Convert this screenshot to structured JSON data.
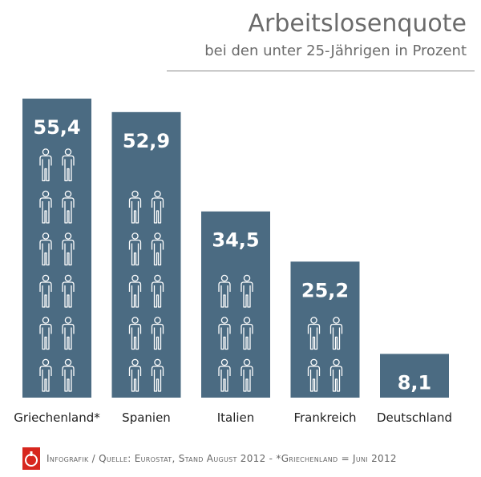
{
  "header": {
    "title": "Arbeitslosenquote",
    "subtitle": "bei den unter 25-Jährigen in Prozent"
  },
  "chart_data": {
    "type": "bar",
    "title": "Arbeitslosenquote",
    "subtitle": "bei den unter 25-Jährigen in Prozent",
    "categories": [
      "Griechenland*",
      "Spanien",
      "Italien",
      "Frankreich",
      "Deutschland"
    ],
    "values": [
      55.4,
      52.9,
      34.5,
      25.2,
      8.1
    ],
    "value_labels": [
      "55,4",
      "52,9",
      "34,5",
      "25,2",
      "8,1"
    ],
    "ylim": [
      0,
      55.4
    ],
    "grid": false,
    "legend": "none",
    "colors": {
      "bar": "#4b6b82",
      "label": "#ffffff",
      "text": "#222222"
    }
  },
  "footer": {
    "source": "Infografik / Quelle: Eurostat, Stand August 2012 - *Griechenland = Juni 2012",
    "logo_icon": "ig-metall-logo-icon"
  }
}
